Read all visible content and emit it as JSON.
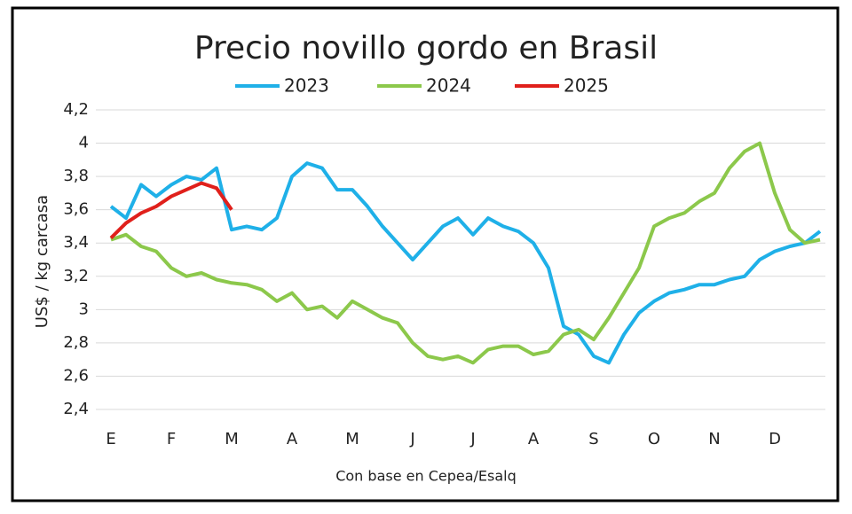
{
  "chart_data": {
    "type": "line",
    "title": "Precio novillo gordo en Brasil",
    "y_label": "US$ / kg carcasa",
    "source": "Con base en Cepea/Esalq",
    "categories": [
      "E",
      null,
      null,
      null,
      "F",
      null,
      null,
      null,
      "M",
      null,
      null,
      null,
      "A",
      null,
      null,
      null,
      "M",
      null,
      null,
      null,
      "J",
      null,
      null,
      null,
      "J",
      null,
      null,
      null,
      "A",
      null,
      null,
      null,
      "S",
      null,
      null,
      null,
      "O",
      null,
      null,
      null,
      "N",
      null,
      null,
      null,
      "D",
      null,
      null,
      null
    ],
    "series": [
      {
        "name": "2023",
        "color": "#1fb0e8",
        "values": [
          3.62,
          3.55,
          3.75,
          3.68,
          3.75,
          3.8,
          3.78,
          3.85,
          3.48,
          3.5,
          3.48,
          3.55,
          3.8,
          3.88,
          3.85,
          3.72,
          3.72,
          3.62,
          3.5,
          3.4,
          3.3,
          3.4,
          3.5,
          3.55,
          3.45,
          3.55,
          3.5,
          3.47,
          3.4,
          3.25,
          2.9,
          2.85,
          2.72,
          2.68,
          2.85,
          2.98,
          3.05,
          3.1,
          3.12,
          3.15,
          3.15,
          3.18,
          3.2,
          3.3,
          3.35,
          3.38,
          3.4,
          3.47
        ]
      },
      {
        "name": "2024",
        "color": "#8cc84b",
        "values": [
          3.42,
          3.45,
          3.38,
          3.35,
          3.25,
          3.2,
          3.22,
          3.18,
          3.16,
          3.15,
          3.12,
          3.05,
          3.1,
          3.0,
          3.02,
          2.95,
          3.05,
          3.0,
          2.95,
          2.92,
          2.8,
          2.72,
          2.7,
          2.72,
          2.68,
          2.76,
          2.78,
          2.78,
          2.73,
          2.75,
          2.85,
          2.88,
          2.82,
          2.95,
          3.1,
          3.25,
          3.5,
          3.55,
          3.58,
          3.65,
          3.7,
          3.85,
          3.95,
          4.0,
          3.7,
          3.48,
          3.4,
          3.42
        ]
      },
      {
        "name": "2025",
        "color": "#e0201b",
        "values": [
          3.43,
          3.52,
          3.58,
          3.62,
          3.68,
          3.72,
          3.76,
          3.73,
          3.6,
          null,
          null,
          null,
          null,
          null,
          null,
          null,
          null,
          null,
          null,
          null,
          null,
          null,
          null,
          null,
          null,
          null,
          null,
          null,
          null,
          null,
          null,
          null,
          null,
          null,
          null,
          null,
          null,
          null,
          null,
          null,
          null,
          null,
          null,
          null,
          null,
          null,
          null,
          null
        ]
      }
    ],
    "ylim": [
      2.3,
      4.2
    ],
    "yticks": [
      {
        "value": 2.4,
        "label": "2,4"
      },
      {
        "value": 2.6,
        "label": "2,6"
      },
      {
        "value": 2.8,
        "label": "2,8"
      },
      3,
      {
        "value": 3.2,
        "label": "3,2"
      },
      {
        "value": 3.4,
        "label": "3,4"
      },
      {
        "value": 3.6,
        "label": "3,6"
      },
      {
        "value": 3.8,
        "label": "3,8"
      },
      4,
      {
        "value": 4.2,
        "label": "4,2"
      }
    ],
    "grid": true
  }
}
